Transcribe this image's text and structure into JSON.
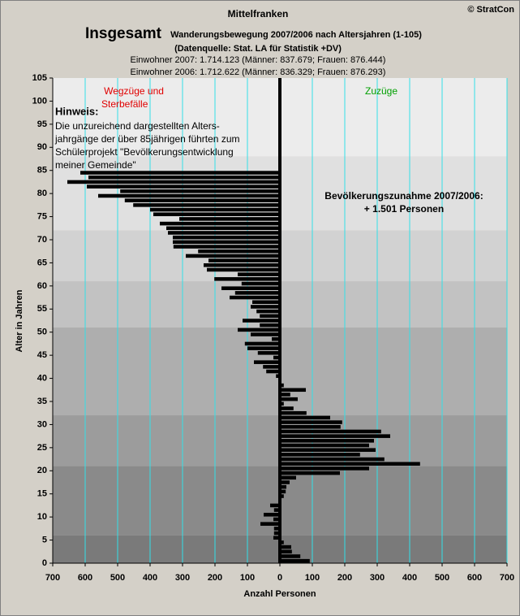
{
  "chart_data": {
    "type": "hbar",
    "title": "Mittelfranken",
    "copyright": "© StratCon",
    "heading": "Insgesamt",
    "subtitle": [
      "Wanderungsbewegung 2007/2006 nach Altersjahren (1-105)",
      "(Datenquelle: Stat. LA für Statistik +DV)"
    ],
    "info": [
      "Einwohner 2007: 1.714.123 (Männer: 837.679; Frauen: 876.444)",
      "Einwohner 2006: 1.712.622 (Männer: 836.329; Frauen: 876.293)"
    ],
    "left_label": [
      "Wegzüge und",
      "Sterbefälle"
    ],
    "right_label": "Zuzüge",
    "note_title": "Hinweis:",
    "note": [
      "Die unzureichend dargestellten Alters-",
      "jahrgänge der über 85jährigen führten zum",
      "Schülerprojekt \"Bevölkerungsentwicklung",
      "meiner Gemeinde\""
    ],
    "summary": [
      "Bevölkerungszunahme 2007/2006:",
      "+ 1.501 Personen"
    ],
    "xlabel": "Anzahl Personen",
    "ylabel": "Alter in Jahren",
    "ages": [
      0,
      1,
      2,
      3,
      4,
      5,
      6,
      7,
      8,
      9,
      10,
      11,
      12,
      13,
      14,
      15,
      16,
      17,
      18,
      19,
      20,
      21,
      22,
      23,
      24,
      25,
      26,
      27,
      28,
      29,
      30,
      31,
      32,
      33,
      34,
      35,
      36,
      37,
      38,
      39,
      40,
      41,
      42,
      43,
      44,
      45,
      46,
      47,
      48,
      49,
      50,
      51,
      52,
      53,
      54,
      55,
      56,
      57,
      58,
      59,
      60,
      61,
      62,
      63,
      64,
      65,
      66,
      67,
      68,
      69,
      70,
      71,
      72,
      73,
      74,
      75,
      76,
      77,
      78,
      79,
      80,
      81,
      82,
      83,
      84
    ],
    "values": [
      92,
      63,
      37,
      35,
      12,
      -20,
      -18,
      -18,
      -60,
      -20,
      -50,
      -18,
      -30,
      2,
      12,
      18,
      20,
      30,
      50,
      185,
      275,
      432,
      322,
      247,
      295,
      275,
      290,
      340,
      312,
      187,
      192,
      155,
      82,
      42,
      12,
      55,
      32,
      80,
      12,
      0,
      -12,
      -42,
      -52,
      -80,
      -20,
      -68,
      -100,
      -108,
      -25,
      -90,
      -130,
      -62,
      -115,
      -62,
      -72,
      -90,
      -85,
      -155,
      -138,
      -180,
      -118,
      -202,
      -130,
      -225,
      -235,
      -220,
      -290,
      -252,
      -328,
      -330,
      -330,
      -345,
      -350,
      -370,
      -310,
      -390,
      -400,
      -452,
      -478,
      -560,
      -492,
      -595,
      -655,
      -590,
      -615
    ],
    "color": "#000000",
    "grid_color": "#33e0e8",
    "xlim": [
      -700,
      700
    ],
    "xticks": [
      {
        "value": -700,
        "label": "700"
      },
      {
        "value": -600,
        "label": "600"
      },
      {
        "value": -500,
        "label": "500"
      },
      {
        "value": -400,
        "label": "400"
      },
      {
        "value": -300,
        "label": "300"
      },
      {
        "value": -200,
        "label": "200"
      },
      {
        "value": -100,
        "label": "100"
      },
      0,
      100,
      200,
      300,
      400,
      500,
      600,
      700
    ],
    "ylim": [
      0,
      105
    ],
    "yticks": [
      0,
      5,
      10,
      15,
      20,
      25,
      30,
      35,
      40,
      45,
      50,
      55,
      60,
      65,
      70,
      75,
      80,
      85,
      90,
      95,
      100,
      105
    ]
  }
}
